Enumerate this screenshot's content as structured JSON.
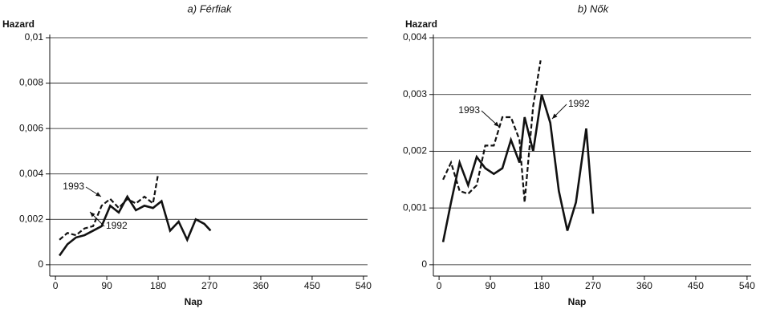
{
  "chart_data": [
    {
      "type": "line",
      "title": "a) Férfiak",
      "y_label": "Hazard",
      "x_label": "Nap",
      "xlim": [
        -10,
        550
      ],
      "xticks": [
        0,
        90,
        180,
        270,
        360,
        450,
        540
      ],
      "ylim": [
        -0.0005,
        0.01
      ],
      "yticks": [
        0,
        {
          "value": 0.002,
          "label": "0,002"
        },
        {
          "value": 0.004,
          "label": "0,004"
        },
        {
          "value": 0.006,
          "label": "0,006"
        },
        {
          "value": 0.008,
          "label": "0,008"
        },
        {
          "value": 0.01,
          "label": "0,01"
        }
      ],
      "grid": true,
      "series": [
        {
          "name": "1992",
          "color": "#111111",
          "dash": false,
          "x": [
            7,
            21,
            36,
            51,
            66,
            81,
            96,
            111,
            126,
            141,
            156,
            171,
            186,
            201,
            216,
            231,
            246,
            261,
            272
          ],
          "values": [
            0.0004,
            0.0009,
            0.0012,
            0.0013,
            0.0015,
            0.0017,
            0.0026,
            0.0023,
            0.003,
            0.0024,
            0.0026,
            0.0025,
            0.0028,
            0.0015,
            0.0019,
            0.0011,
            0.002,
            0.0018,
            0.0015
          ]
        },
        {
          "name": "1993",
          "color": "#111111",
          "dash": true,
          "x": [
            7,
            21,
            36,
            51,
            66,
            81,
            96,
            111,
            126,
            141,
            156,
            171,
            180
          ],
          "values": [
            0.0011,
            0.0014,
            0.0013,
            0.0016,
            0.0017,
            0.0026,
            0.0029,
            0.0025,
            0.0029,
            0.0027,
            0.003,
            0.0027,
            0.004
          ]
        }
      ]
    },
    {
      "type": "line",
      "title": "b) Nők",
      "y_label": "Hazard",
      "x_label": "Nap",
      "xlim": [
        -10,
        550
      ],
      "xticks": [
        0,
        90,
        180,
        270,
        360,
        450,
        540
      ],
      "ylim": [
        -0.0002,
        0.004
      ],
      "yticks": [
        0,
        {
          "value": 0.001,
          "label": "0,001"
        },
        {
          "value": 0.002,
          "label": "0,002"
        },
        {
          "value": 0.003,
          "label": "0,003"
        },
        {
          "value": 0.004,
          "label": "0,004"
        }
      ],
      "grid": true,
      "series": [
        {
          "name": "1992",
          "color": "#111111",
          "dash": false,
          "x": [
            7,
            21,
            36,
            51,
            66,
            81,
            96,
            111,
            126,
            141,
            150,
            165,
            180,
            195,
            210,
            225,
            240,
            258,
            270
          ],
          "values": [
            0.0004,
            0.0011,
            0.0018,
            0.0014,
            0.0019,
            0.0017,
            0.0016,
            0.0017,
            0.0022,
            0.0018,
            0.0026,
            0.002,
            0.003,
            0.0025,
            0.0013,
            0.0006,
            0.0011,
            0.0024,
            0.0009
          ]
        },
        {
          "name": "1993",
          "color": "#111111",
          "dash": true,
          "x": [
            7,
            21,
            36,
            51,
            66,
            81,
            96,
            111,
            126,
            141,
            150,
            165,
            178
          ],
          "values": [
            0.0015,
            0.0018,
            0.0013,
            0.00125,
            0.0014,
            0.0021,
            0.0021,
            0.0026,
            0.0026,
            0.0022,
            0.0011,
            0.0028,
            0.0036
          ]
        }
      ]
    }
  ]
}
